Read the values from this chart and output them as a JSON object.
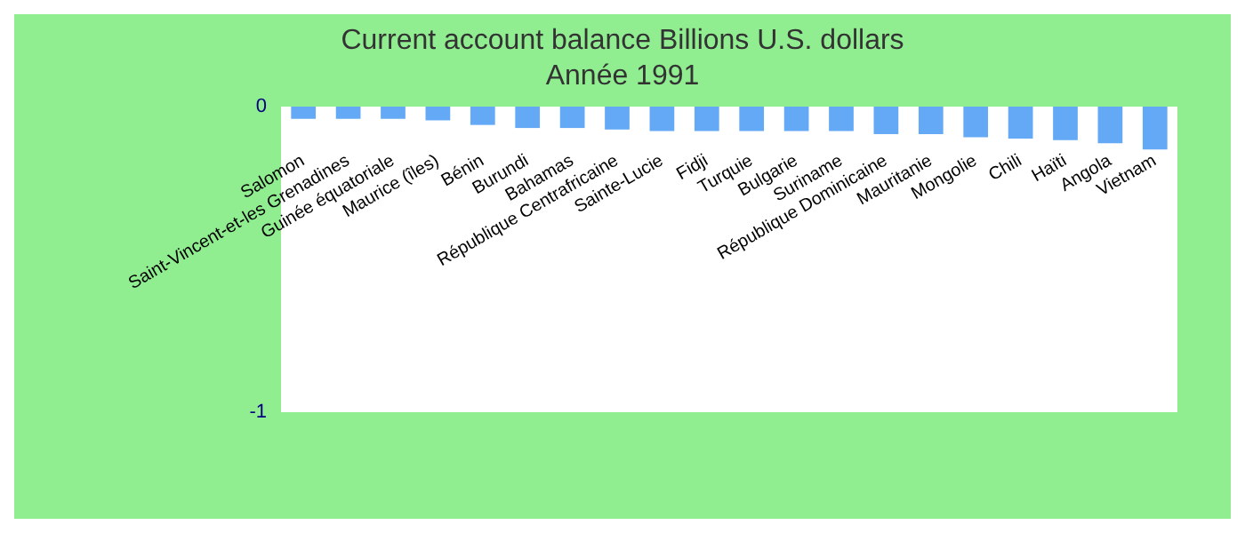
{
  "chart_data": {
    "type": "bar",
    "title": "Current account balance Billions U.S. dollars",
    "subtitle": "Année 1991",
    "categories": [
      "Salomon",
      "Saint-Vincent-et-les Grenadines",
      "Guinée équatoriale",
      "Maurice (îles)",
      "Bénin",
      "Burundi",
      "Bahamas",
      "République Centrafricaine",
      "Sainte-Lucie",
      "Fidji",
      "Turquie",
      "Bulgarie",
      "Suriname",
      "République Dominicaine",
      "Mauritanie",
      "Mongolie",
      "Chili",
      "Haïti",
      "Angola",
      "Vietnam"
    ],
    "values": [
      -0.04,
      -0.04,
      -0.04,
      -0.045,
      -0.06,
      -0.07,
      -0.07,
      -0.075,
      -0.08,
      -0.08,
      -0.08,
      -0.08,
      -0.08,
      -0.09,
      -0.09,
      -0.1,
      -0.105,
      -0.11,
      -0.12,
      -0.14
    ],
    "color": "#63a9f5",
    "ylim": [
      -1,
      0
    ],
    "yticks": [
      -1,
      0
    ],
    "grid": false
  }
}
